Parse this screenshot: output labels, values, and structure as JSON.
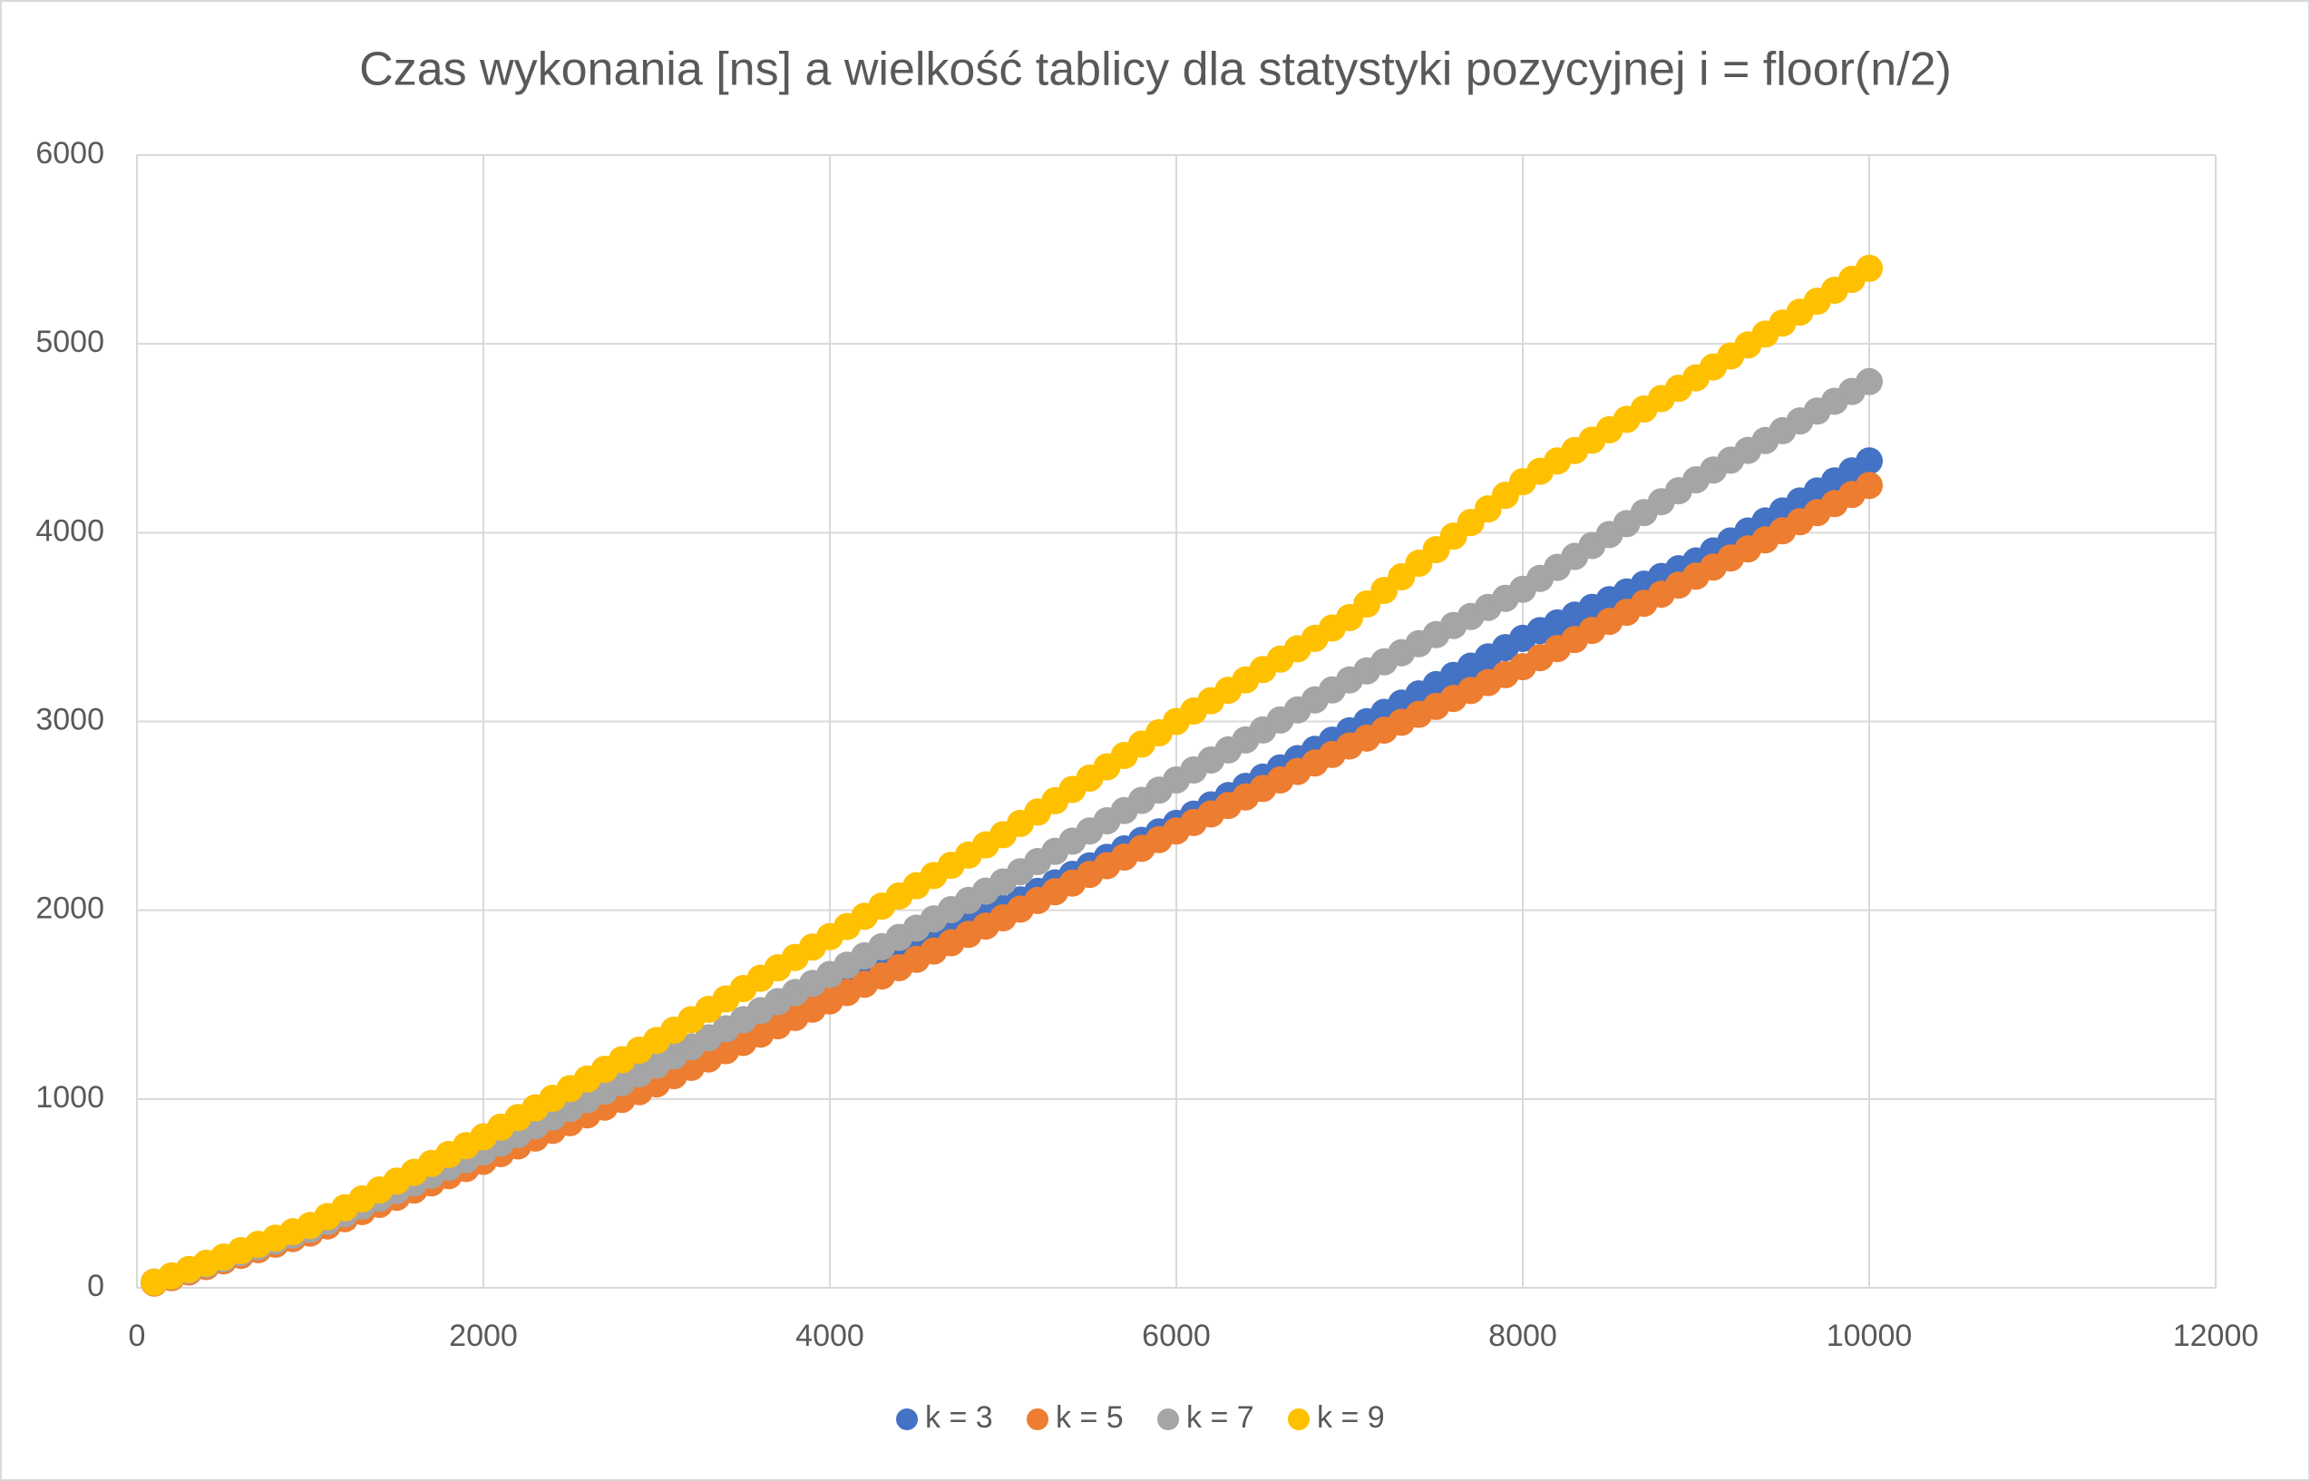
{
  "chart_data": {
    "type": "scatter",
    "title": "Czas wykonania [ns] a wielkość tablicy dla statystyki pozycyjnej i = floor(n/2)",
    "x": [
      100,
      200,
      300,
      400,
      500,
      600,
      700,
      800,
      900,
      1000,
      1100,
      1200,
      1300,
      1400,
      1500,
      1600,
      1700,
      1800,
      1900,
      2000,
      2100,
      2200,
      2300,
      2400,
      2500,
      2600,
      2700,
      2800,
      2900,
      3000,
      3100,
      3200,
      3300,
      3400,
      3500,
      3600,
      3700,
      3800,
      3900,
      4000,
      4100,
      4200,
      4300,
      4400,
      4500,
      4600,
      4700,
      4800,
      4900,
      5000,
      5100,
      5200,
      5300,
      5400,
      5500,
      5600,
      5700,
      5800,
      5900,
      6000,
      6100,
      6200,
      6300,
      6400,
      6500,
      6600,
      6700,
      6800,
      6900,
      7000,
      7100,
      7200,
      7300,
      7400,
      7500,
      7600,
      7700,
      7800,
      7900,
      8000,
      8100,
      8200,
      8300,
      8400,
      8500,
      8600,
      8700,
      8800,
      8900,
      9000,
      9100,
      9200,
      9300,
      9400,
      9500,
      9600,
      9700,
      9800,
      9900,
      10000
    ],
    "series": [
      {
        "name": "k = 3",
        "color": "#4472c4",
        "values": [
          30,
          60,
          90,
          120,
          150,
          180,
          210,
          240,
          270,
          300,
          339,
          378,
          417,
          456,
          495,
          534,
          573,
          612,
          651,
          690,
          733,
          776,
          819,
          862,
          905,
          948,
          991,
          1034,
          1077,
          1120,
          1168,
          1216,
          1264,
          1312,
          1360,
          1408,
          1456,
          1504,
          1552,
          1600,
          1641,
          1682,
          1723,
          1764,
          1805,
          1846,
          1887,
          1928,
          1969,
          2010,
          2055,
          2100,
          2145,
          2190,
          2235,
          2280,
          2325,
          2370,
          2415,
          2460,
          2509,
          2558,
          2607,
          2656,
          2705,
          2754,
          2803,
          2852,
          2901,
          2950,
          2999,
          3048,
          3097,
          3146,
          3195,
          3244,
          3293,
          3342,
          3391,
          3440,
          3481,
          3522,
          3563,
          3604,
          3645,
          3686,
          3727,
          3768,
          3809,
          3850,
          3903,
          3956,
          4009,
          4062,
          4115,
          4168,
          4221,
          4274,
          4327,
          4380
        ]
      },
      {
        "name": "k = 5",
        "color": "#ed7d31",
        "values": [
          25,
          54,
          84,
          113,
          143,
          172,
          202,
          231,
          261,
          290,
          328,
          366,
          404,
          442,
          480,
          518,
          556,
          594,
          632,
          670,
          711,
          752,
          793,
          834,
          875,
          916,
          957,
          998,
          1039,
          1080,
          1124,
          1168,
          1212,
          1256,
          1300,
          1344,
          1388,
          1432,
          1476,
          1520,
          1564,
          1608,
          1652,
          1696,
          1740,
          1784,
          1828,
          1872,
          1916,
          1960,
          2006,
          2052,
          2098,
          2144,
          2190,
          2236,
          2282,
          2328,
          2374,
          2420,
          2465,
          2510,
          2555,
          2600,
          2645,
          2690,
          2735,
          2780,
          2825,
          2870,
          2912,
          2954,
          2996,
          3038,
          3080,
          3122,
          3164,
          3206,
          3248,
          3290,
          3338,
          3386,
          3434,
          3482,
          3530,
          3578,
          3626,
          3674,
          3722,
          3770,
          3818,
          3866,
          3914,
          3962,
          4010,
          4058,
          4106,
          4154,
          4202,
          4250
        ]
      },
      {
        "name": "k = 7",
        "color": "#a5a5a5",
        "values": [
          30,
          61,
          92,
          123,
          154,
          186,
          217,
          248,
          279,
          310,
          351,
          392,
          433,
          474,
          515,
          556,
          597,
          638,
          679,
          720,
          766,
          812,
          858,
          904,
          950,
          996,
          1042,
          1088,
          1134,
          1180,
          1228,
          1276,
          1324,
          1372,
          1420,
          1468,
          1516,
          1564,
          1612,
          1660,
          1709,
          1758,
          1807,
          1856,
          1905,
          1954,
          2003,
          2052,
          2101,
          2150,
          2204,
          2258,
          2312,
          2366,
          2420,
          2474,
          2528,
          2582,
          2636,
          2690,
          2743,
          2796,
          2849,
          2902,
          2955,
          3008,
          3061,
          3114,
          3167,
          3220,
          3268,
          3316,
          3364,
          3412,
          3460,
          3508,
          3556,
          3604,
          3652,
          3700,
          3758,
          3816,
          3874,
          3932,
          3990,
          4048,
          4106,
          4164,
          4222,
          4280,
          4332,
          4384,
          4436,
          4488,
          4540,
          4592,
          4644,
          4696,
          4748,
          4800
        ]
      },
      {
        "name": "k = 9",
        "color": "#ffc000",
        "values": [
          30,
          63,
          97,
          130,
          163,
          197,
          230,
          263,
          297,
          330,
          377,
          424,
          471,
          518,
          565,
          612,
          659,
          706,
          753,
          800,
          851,
          902,
          953,
          1004,
          1055,
          1106,
          1157,
          1208,
          1259,
          1310,
          1365,
          1420,
          1475,
          1530,
          1585,
          1640,
          1695,
          1750,
          1805,
          1860,
          1914,
          1968,
          2022,
          2076,
          2130,
          2184,
          2238,
          2292,
          2346,
          2400,
          2460,
          2520,
          2580,
          2640,
          2700,
          2760,
          2820,
          2880,
          2940,
          3000,
          3055,
          3110,
          3165,
          3220,
          3275,
          3330,
          3385,
          3440,
          3495,
          3550,
          3622,
          3694,
          3766,
          3838,
          3910,
          3982,
          4054,
          4126,
          4198,
          4270,
          4325,
          4380,
          4435,
          4490,
          4545,
          4600,
          4655,
          4710,
          4765,
          4820,
          4878,
          4936,
          4994,
          5052,
          5110,
          5168,
          5226,
          5284,
          5342,
          5400
        ]
      }
    ],
    "xlim": [
      0,
      12000
    ],
    "xticks": [
      0,
      2000,
      4000,
      6000,
      8000,
      10000,
      12000
    ],
    "ylim": [
      0,
      6000
    ],
    "yticks": [
      0,
      1000,
      2000,
      3000,
      4000,
      5000,
      6000
    ],
    "grid": true,
    "legend": "bottom"
  }
}
